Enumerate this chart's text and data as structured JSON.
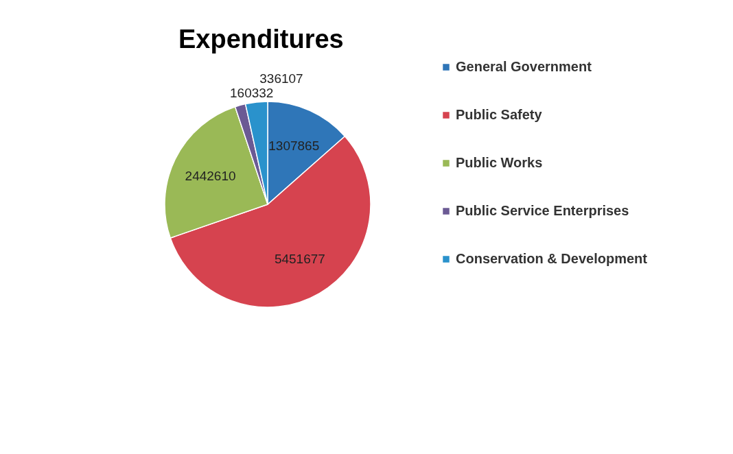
{
  "chart_data": {
    "type": "pie",
    "title": "Expenditures",
    "categories": [
      "General Government",
      "Public Safety",
      "Public Works",
      "Public Service Enterprises",
      "Conservation & Development"
    ],
    "values": [
      1307865,
      5451677,
      2442610,
      160332,
      336107
    ],
    "colors": [
      "#2f76b8",
      "#d6434f",
      "#9ab956",
      "#6b5a94",
      "#2a92cc"
    ],
    "data_labels": true,
    "legend": "right"
  }
}
